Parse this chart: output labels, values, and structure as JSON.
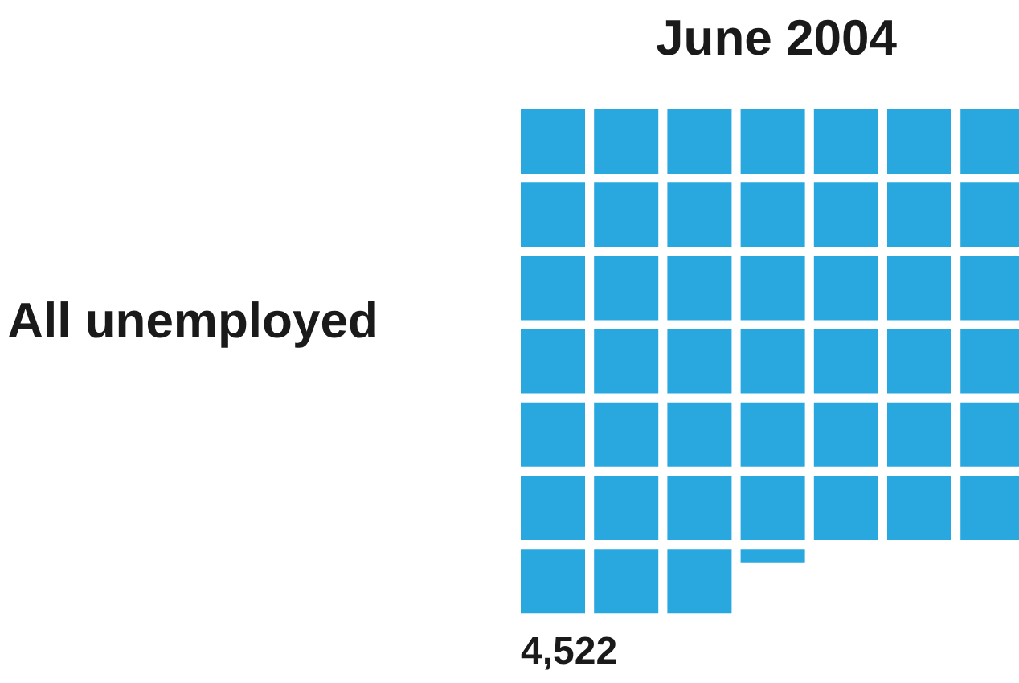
{
  "chart_data": {
    "type": "other",
    "title": "June 2004",
    "categories": [
      "All unemployed"
    ],
    "values": [
      4522
    ],
    "value_labels": [
      "4,522"
    ],
    "color": "#29a8e0"
  }
}
